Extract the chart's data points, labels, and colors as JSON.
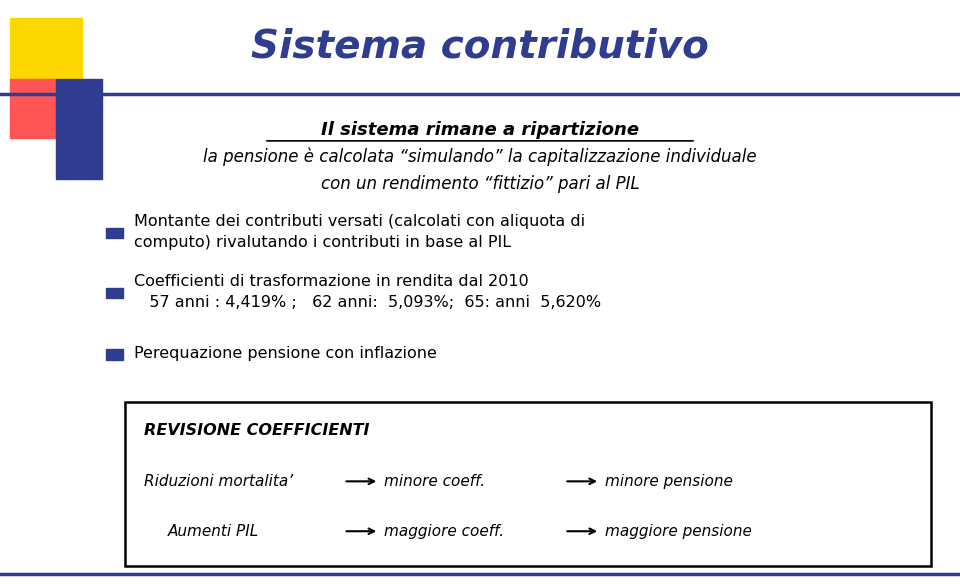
{
  "title": "Sistema contributivo",
  "title_color": "#2F3C8F",
  "title_fontsize": 28,
  "subtitle_bold": "Il sistema rimane a ripartizione",
  "subtitle_italic": "la pensione è calcolata “simulando” la capitalizzazione individuale\ncon un rendimento “fittizio” pari al PIL",
  "bullet_points": [
    "Montante dei contributi versati (calcolati con aliquota di\ncomputo) rivalutando i contributi in base al PIL",
    "Coefficienti di trasformazione in rendita dal 2010\n   57 anni : 4,419% ;   62 anni:  5,093%;  65: anni  5,620%",
    "Perequazione pensione con inflazione"
  ],
  "bullet_color": "#2F3C8F",
  "text_color": "#000000",
  "box_title": "REVISIONE COEFFICIENTI",
  "box_line1_left": "Riduzioni mortalita’",
  "box_line1_mid": "minore coeff.",
  "box_line1_right": "minore pensione",
  "box_line2_left": "Aumenti PIL",
  "box_line2_mid": "maggiore coeff.",
  "box_line2_right": "maggiore pensione",
  "bg_color": "#FFFFFF",
  "footer_color": "#2F3C8F"
}
